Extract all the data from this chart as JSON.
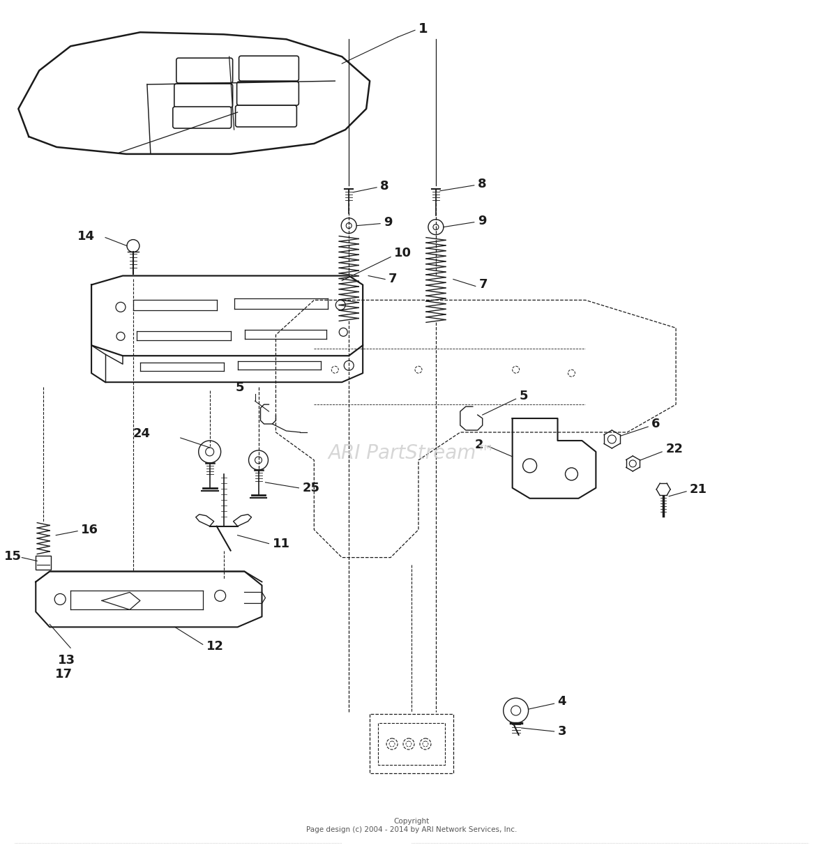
{
  "background_color": "#ffffff",
  "line_color": "#1a1a1a",
  "watermark_text": "ARI PartStream™",
  "watermark_color": "#cccccc",
  "copyright_text": "Copyright\nPage design (c) 2004 - 2014 by ARI Network Services, Inc.",
  "fig_width": 11.8,
  "fig_height": 12.32,
  "dpi": 100
}
